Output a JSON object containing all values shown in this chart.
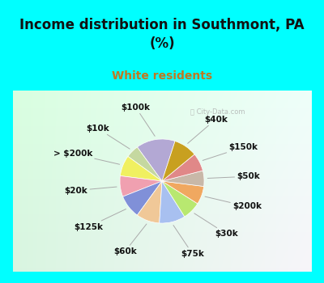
{
  "title": "Income distribution in Southmont, PA\n(%)",
  "subtitle": "White residents",
  "title_color": "#111111",
  "subtitle_color": "#c07820",
  "background_cyan": "#00FFFF",
  "labels": [
    "$100k",
    "$10k",
    "> $200k",
    "$20k",
    "$125k",
    "$60k",
    "$75k",
    "$30k",
    "$200k",
    "$50k",
    "$150k",
    "$40k"
  ],
  "values": [
    15,
    5,
    8,
    8,
    9,
    9,
    10,
    7,
    7,
    6,
    7,
    9
  ],
  "colors": [
    "#b3a8d4",
    "#c5d8a0",
    "#f0f060",
    "#f0a0b0",
    "#8090d8",
    "#f0c898",
    "#a8c0f0",
    "#b8e870",
    "#f0a860",
    "#c8b8a8",
    "#e08888",
    "#c8a020"
  ],
  "label_fontsize": 7.5,
  "startangle": 72,
  "title_fontsize": 12,
  "subtitle_fontsize": 10
}
